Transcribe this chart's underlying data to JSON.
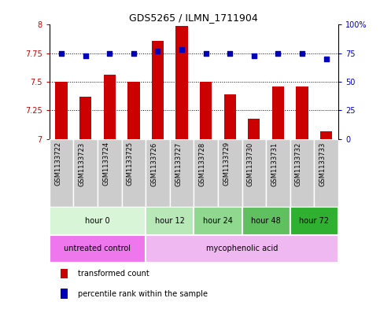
{
  "title": "GDS5265 / ILMN_1711904",
  "samples": [
    "GSM1133722",
    "GSM1133723",
    "GSM1133724",
    "GSM1133725",
    "GSM1133726",
    "GSM1133727",
    "GSM1133728",
    "GSM1133729",
    "GSM1133730",
    "GSM1133731",
    "GSM1133732",
    "GSM1133733"
  ],
  "red_values": [
    7.5,
    7.37,
    7.56,
    7.5,
    7.86,
    7.99,
    7.5,
    7.39,
    7.18,
    7.46,
    7.46,
    7.07
  ],
  "blue_values": [
    75,
    73,
    75,
    75,
    77,
    78,
    75,
    75,
    73,
    75,
    75,
    70
  ],
  "ylim_left": [
    7.0,
    8.0
  ],
  "ylim_right": [
    0,
    100
  ],
  "yticks_left": [
    7.0,
    7.25,
    7.5,
    7.75,
    8.0
  ],
  "yticks_right": [
    0,
    25,
    50,
    75,
    100
  ],
  "ytick_labels_left": [
    "7",
    "7.25",
    "7.5",
    "7.75",
    "8"
  ],
  "ytick_labels_right": [
    "0",
    "25",
    "50",
    "75",
    "100%"
  ],
  "hlines": [
    7.25,
    7.5,
    7.75
  ],
  "bar_color": "#CC0000",
  "dot_color": "#0000BB",
  "time_groups": [
    {
      "label": "hour 0",
      "start": 0,
      "end": 3,
      "color": "#d8f5d8"
    },
    {
      "label": "hour 12",
      "start": 4,
      "end": 5,
      "color": "#b8e8b8"
    },
    {
      "label": "hour 24",
      "start": 6,
      "end": 7,
      "color": "#90d890"
    },
    {
      "label": "hour 48",
      "start": 8,
      "end": 9,
      "color": "#60c060"
    },
    {
      "label": "hour 72",
      "start": 10,
      "end": 11,
      "color": "#30b030"
    }
  ],
  "agent_groups": [
    {
      "label": "untreated control",
      "start": 0,
      "end": 3,
      "color": "#ee77ee"
    },
    {
      "label": "mycophenolic acid",
      "start": 4,
      "end": 11,
      "color": "#f0b8f0"
    }
  ],
  "sample_bg": "#cccccc",
  "xlabel_color": "#CC0000",
  "ylabel_right_color": "#0000BB",
  "bar_bottom": 7.0,
  "fig_bg": "#ffffff"
}
